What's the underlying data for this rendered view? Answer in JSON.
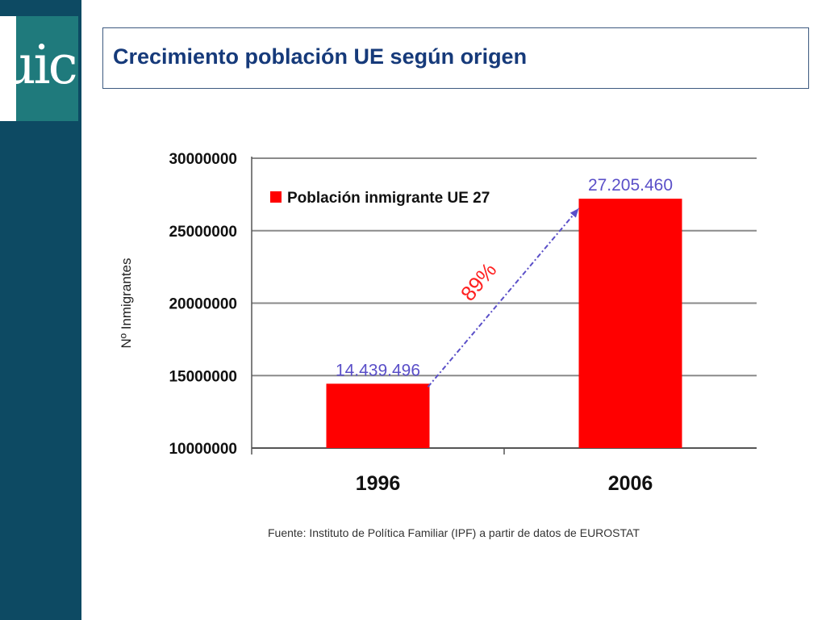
{
  "logo": {
    "text": "uic"
  },
  "slide": {
    "title": "Crecimiento población UE según origen"
  },
  "chart_data": {
    "type": "bar",
    "categories": [
      "1996",
      "2006"
    ],
    "series": [
      {
        "name": "Población inmigrante UE 27",
        "values": [
          14439496,
          27205460
        ]
      }
    ],
    "data_labels": [
      "14.439.496",
      "27.205.460"
    ],
    "ylabel": "Nº Inmigrantes",
    "ylim": [
      10000000,
      30000000
    ],
    "yticks": [
      10000000,
      15000000,
      20000000,
      25000000,
      30000000
    ],
    "ytick_labels": [
      "10000000",
      "15000000",
      "20000000",
      "25000000",
      "30000000"
    ],
    "grid": true,
    "legend": "top-left",
    "annotation": "89%",
    "source": "Fuente: Instituto de Política Familiar (IPF) a partir de datos de EUROSTAT",
    "colors": {
      "bar": "#ff0000",
      "data_label": "#5a4fc8",
      "annotation": "#ff2020",
      "arrow": "#5a4fc8"
    }
  }
}
